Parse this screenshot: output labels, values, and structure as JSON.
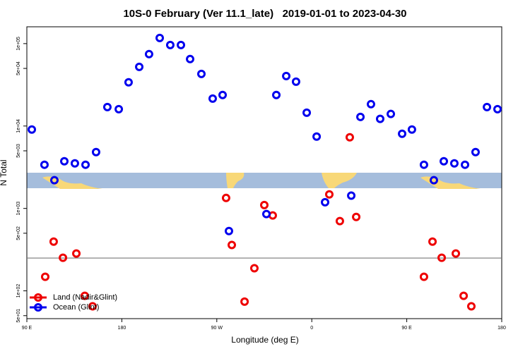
{
  "chart_data": {
    "type": "scatter",
    "title": "10S-0 February (Ver 11.1_late)   2019-01-01 to 2023-04-30",
    "xlabel": "Longitude (deg E)",
    "ylabel": "N Total",
    "xlim": [
      90,
      540
    ],
    "xticks": [
      {
        "value": 90,
        "label": "90 E"
      },
      {
        "value": 180,
        "label": "180"
      },
      {
        "value": 270,
        "label": "90 W"
      },
      {
        "value": 360,
        "label": "0"
      },
      {
        "value": 450,
        "label": "90 E"
      },
      {
        "value": 540,
        "label": "180"
      }
    ],
    "ylim": [
      46,
      160000
    ],
    "log_y": true,
    "yticks": [
      {
        "value": 50,
        "label": "5e+01"
      },
      {
        "value": 100,
        "label": "1e+02"
      },
      {
        "value": 500,
        "label": "5e+02"
      },
      {
        "value": 1000,
        "label": "1e+03"
      },
      {
        "value": 5000,
        "label": "5e+03"
      },
      {
        "value": 10000,
        "label": "1e+04"
      },
      {
        "value": 50000,
        "label": "5e+04"
      },
      {
        "value": 100000,
        "label": "1e+05"
      }
    ],
    "hline": 250,
    "legend": "lower left",
    "series": [
      {
        "name": "Land (Nadir&Glint)",
        "color": "#ee0000",
        "x": [
          107.4,
          115.4,
          124.2,
          136.9,
          144.9,
          152.3,
          278.8,
          284.2,
          296.3,
          305.6,
          315.0,
          323.0,
          376.6,
          386.6,
          396.0,
          402.1,
          466.3,
          474.4,
          483.1,
          496.5,
          503.9,
          511.2
        ],
        "values": [
          148,
          396,
          252,
          284,
          87,
          65,
          1340,
          360,
          74,
          188,
          1100,
          822,
          1480,
          702,
          7300,
          789,
          148,
          396,
          252,
          284,
          87,
          65
        ]
      },
      {
        "name": "Ocean (Glint)",
        "color": "#0000ee",
        "x": [
          94.7,
          106.7,
          116.1,
          125.5,
          135.5,
          145.6,
          155.6,
          166.3,
          177.1,
          186.4,
          196.5,
          205.8,
          215.9,
          225.9,
          236.0,
          244.7,
          255.4,
          266.1,
          275.5,
          281.5,
          317.0,
          326.4,
          335.8,
          345.1,
          355.2,
          364.6,
          372.6,
          397.4,
          406.1,
          416.1,
          424.8,
          434.9,
          445.6,
          454.9,
          466.3,
          475.7,
          485.1,
          495.1,
          505.2,
          515.2,
          526.0,
          536.0
        ],
        "values": [
          9060,
          3390,
          2200,
          3740,
          3520,
          3390,
          4830,
          17000,
          16000,
          33900,
          52200,
          74500,
          117000,
          96200,
          96200,
          64900,
          42900,
          21500,
          23800,
          532,
          855,
          23800,
          40400,
          34500,
          14500,
          7450,
          1190,
          1430,
          12900,
          18400,
          12200,
          14000,
          8050,
          9060,
          3390,
          2200,
          3740,
          3520,
          3390,
          4830,
          17000,
          16000
        ]
      }
    ]
  }
}
